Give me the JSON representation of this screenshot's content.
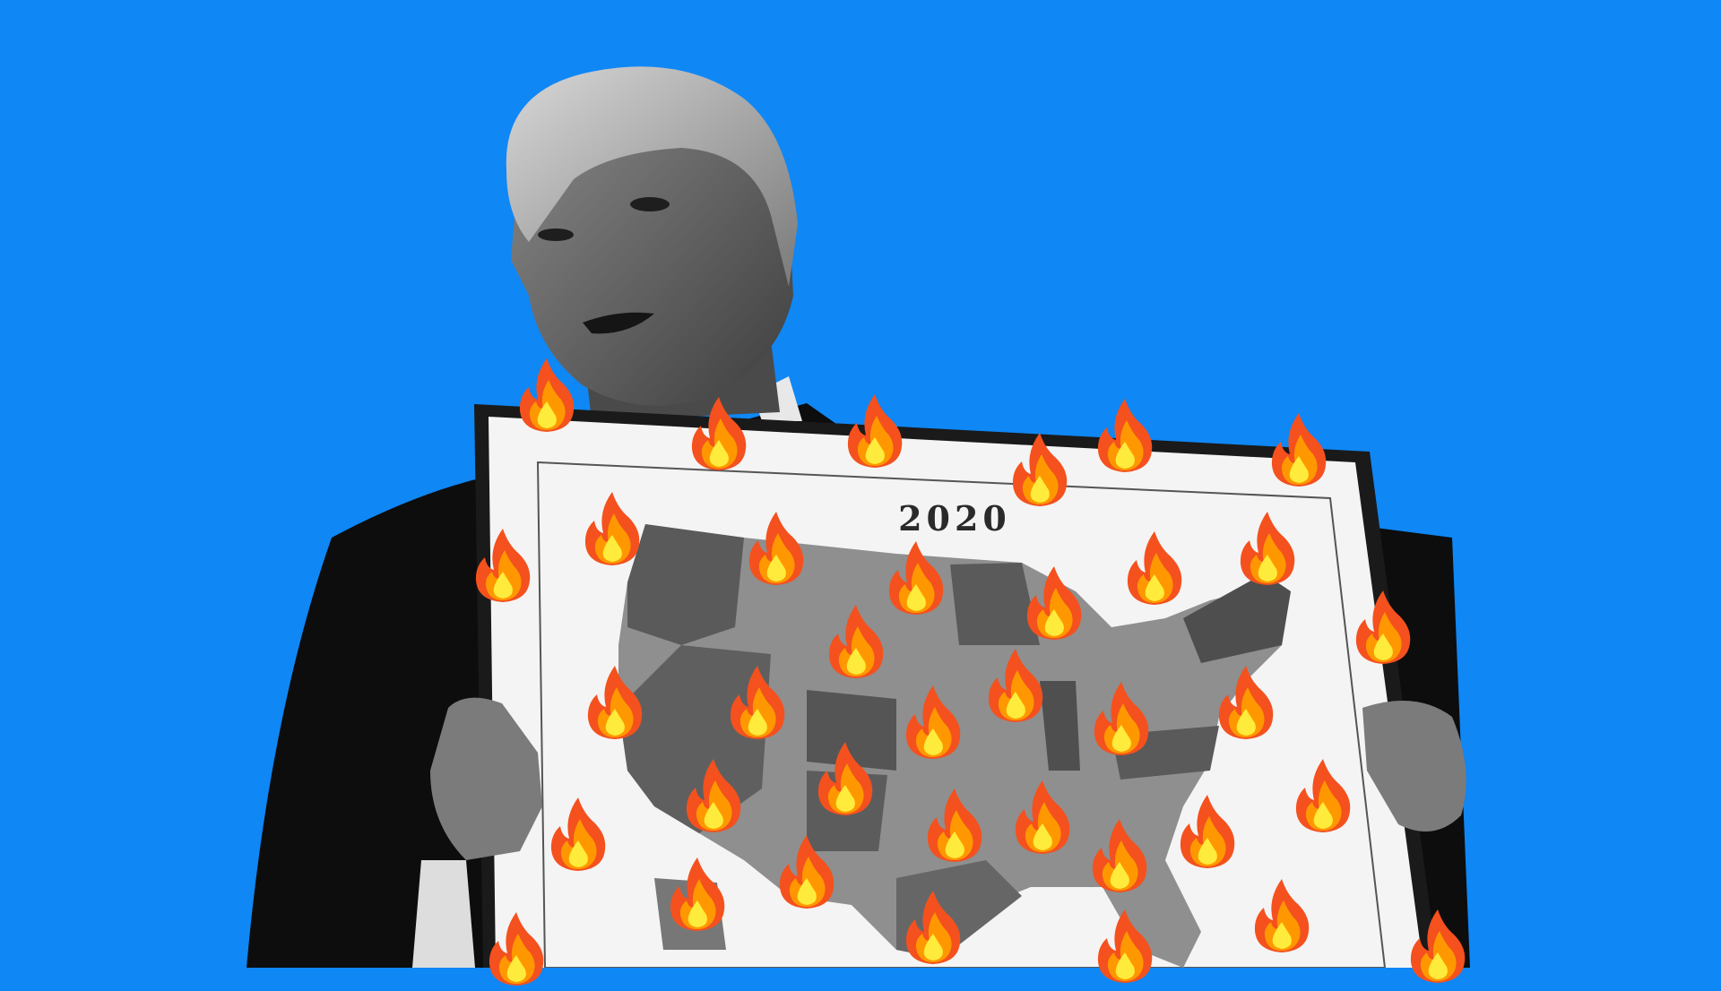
{
  "board": {
    "year_label": "2020"
  },
  "colors": {
    "background": "#0F87F5",
    "flame_outer": "#F4511E",
    "flame_mid": "#FF9800",
    "flame_inner": "#FFEB3B",
    "map_dark": "#5a5a5a",
    "map_light": "#9a9a9a"
  },
  "icons": {
    "flame": "fire-emoji-icon"
  }
}
